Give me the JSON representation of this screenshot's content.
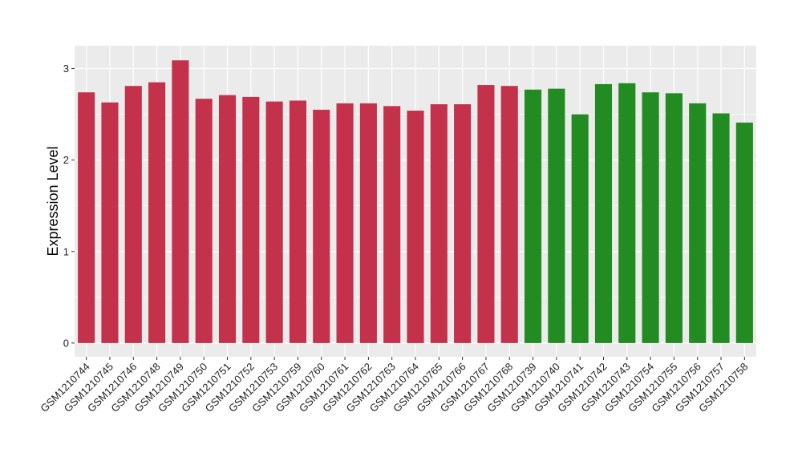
{
  "chart_data": {
    "type": "bar",
    "ylabel": "Expression Level",
    "xlabel": "",
    "ylim": [
      -0.15,
      3.25
    ],
    "yticks": [
      0,
      1,
      2,
      3
    ],
    "grid": true,
    "colors": {
      "group1": "#c4314b",
      "group2": "#228b22",
      "panel": "#ebebeb",
      "grid": "#ffffff"
    },
    "categories": [
      "GSM1210744",
      "GSM1210745",
      "GSM1210746",
      "GSM1210748",
      "GSM1210749",
      "GSM1210750",
      "GSM1210751",
      "GSM1210752",
      "GSM1210753",
      "GSM1210759",
      "GSM1210760",
      "GSM1210761",
      "GSM1210762",
      "GSM1210763",
      "GSM1210764",
      "GSM1210765",
      "GSM1210766",
      "GSM1210767",
      "GSM1210768",
      "GSM1210739",
      "GSM1210740",
      "GSM1210741",
      "GSM1210742",
      "GSM1210743",
      "GSM1210754",
      "GSM1210755",
      "GSM1210756",
      "GSM1210757",
      "GSM1210758"
    ],
    "values": [
      2.74,
      2.63,
      2.81,
      2.85,
      3.09,
      2.67,
      2.71,
      2.69,
      2.64,
      2.65,
      2.55,
      2.62,
      2.62,
      2.59,
      2.54,
      2.61,
      2.61,
      2.82,
      2.81,
      2.77,
      2.78,
      2.5,
      2.83,
      2.84,
      2.74,
      2.73,
      2.62,
      2.51,
      2.41
    ],
    "groups": [
      "group1",
      "group1",
      "group1",
      "group1",
      "group1",
      "group1",
      "group1",
      "group1",
      "group1",
      "group1",
      "group1",
      "group1",
      "group1",
      "group1",
      "group1",
      "group1",
      "group1",
      "group1",
      "group1",
      "group2",
      "group2",
      "group2",
      "group2",
      "group2",
      "group2",
      "group2",
      "group2",
      "group2",
      "group2"
    ]
  }
}
